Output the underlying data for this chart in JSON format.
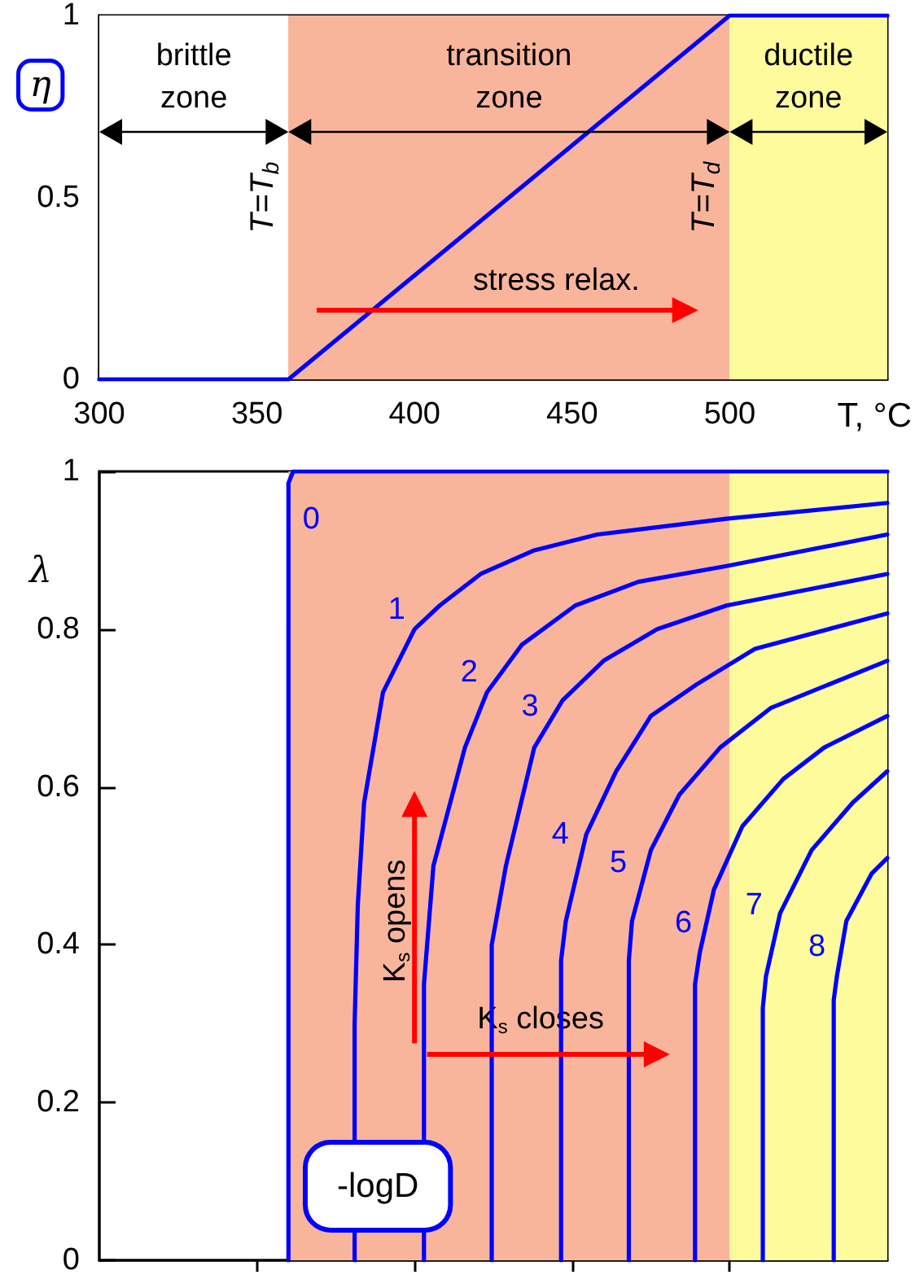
{
  "chart_data": [
    {
      "type": "line",
      "xlabel": "T, °C",
      "ylabel": "η",
      "xlim": [
        300,
        550
      ],
      "xticks": [
        300,
        350,
        400,
        450,
        500
      ],
      "ylim": [
        0,
        1
      ],
      "yticks": [
        0,
        0.5,
        1
      ],
      "grid": false,
      "legend": false,
      "marker": "none",
      "line_style": "solid",
      "series": [
        {
          "color": "#0000ff",
          "x": [
            300,
            360,
            500,
            550
          ],
          "values": [
            0,
            0,
            1,
            1
          ]
        }
      ],
      "bands": [
        {
          "axis": "x",
          "from": 300,
          "to": 360,
          "label": "brittle zone",
          "color": "#ffffff"
        },
        {
          "axis": "x",
          "from": 360,
          "to": 500,
          "label": "transition zone",
          "color": "#f9b59c"
        },
        {
          "axis": "x",
          "from": 500,
          "to": 550,
          "label": "ductile zone",
          "color": "#fdfb9c"
        }
      ],
      "ref_lines": [
        {
          "axis": "x",
          "value": 360,
          "label": "T=T$_{b}$",
          "color": "#f9b59c"
        },
        {
          "axis": "x",
          "value": 500,
          "label": "T=T$_{d}$",
          "color": "#fdfb9c"
        }
      ],
      "annotations": [
        "stress relax."
      ]
    },
    {
      "type": "line",
      "ylabel": "λ",
      "legend_title": "-logD",
      "xlim": [
        300,
        550
      ],
      "xticks": [
        {
          "value": 350,
          "label": null
        },
        {
          "value": 400,
          "label": null
        },
        {
          "value": 450,
          "label": null
        },
        {
          "value": 500,
          "label": null
        }
      ],
      "ylim": [
        0,
        1
      ],
      "yticks": [
        0,
        0.2,
        0.4,
        0.6,
        0.8,
        1
      ],
      "tick_labels": "y",
      "grid": false,
      "legend": false,
      "marker": "none",
      "line_style": "solid",
      "bands": [
        {
          "axis": "x",
          "from": 360,
          "to": 500,
          "color": "#f9b59c"
        },
        {
          "axis": "x",
          "from": 500,
          "to": 550,
          "color": "#fdfb9c"
        }
      ],
      "series": [
        {
          "name": "0",
          "color": "#0000ff",
          "x": [
            360,
            360,
            361.5,
            550
          ],
          "values": [
            0,
            0.985,
            1,
            1
          ]
        },
        {
          "name": "1",
          "color": "#0000ff",
          "x": [
            381,
            381,
            382,
            384,
            390,
            400,
            408,
            421,
            438,
            458,
            499,
            550
          ],
          "values": [
            0,
            0.3,
            0.45,
            0.58,
            0.72,
            0.8,
            0.83,
            0.87,
            0.9,
            0.92,
            0.94,
            0.96
          ]
        },
        {
          "name": "2",
          "color": "#0000ff",
          "x": [
            403,
            403,
            406,
            416,
            423,
            434,
            451,
            471,
            499,
            550
          ],
          "values": [
            0,
            0.35,
            0.5,
            0.65,
            0.72,
            0.78,
            0.83,
            0.86,
            0.88,
            0.92
          ]
        },
        {
          "name": "3",
          "color": "#0000ff",
          "x": [
            424.5,
            424.5,
            429,
            438,
            447,
            460,
            477,
            499,
            550
          ],
          "values": [
            0,
            0.4,
            0.5,
            0.65,
            0.71,
            0.76,
            0.8,
            0.83,
            0.87
          ]
        },
        {
          "name": "4",
          "color": "#0000ff",
          "x": [
            446.5,
            446.5,
            448,
            454.5,
            464,
            475,
            489.5,
            508,
            550
          ],
          "values": [
            0,
            0.38,
            0.43,
            0.54,
            0.62,
            0.69,
            0.73,
            0.775,
            0.82
          ]
        },
        {
          "name": "5",
          "color": "#0000ff",
          "x": [
            468,
            468,
            469,
            475,
            484,
            497,
            513,
            550
          ],
          "values": [
            0,
            0.38,
            0.43,
            0.52,
            0.59,
            0.65,
            0.7,
            0.76
          ]
        },
        {
          "name": "6",
          "color": "#0000ff",
          "x": [
            489,
            489,
            490.5,
            495,
            504,
            517,
            530,
            550
          ],
          "values": [
            0,
            0.35,
            0.39,
            0.47,
            0.55,
            0.61,
            0.65,
            0.69
          ]
        },
        {
          "name": "7",
          "color": "#0000ff",
          "x": [
            510.5,
            510.5,
            511.5,
            516,
            526,
            539,
            550
          ],
          "values": [
            0,
            0.32,
            0.36,
            0.44,
            0.52,
            0.58,
            0.62
          ]
        },
        {
          "name": "8",
          "color": "#0000ff",
          "x": [
            533,
            533,
            534,
            537,
            545,
            550
          ],
          "values": [
            0,
            0.33,
            0.36,
            0.43,
            0.49,
            0.51
          ]
        }
      ],
      "annotations": [
        "K$_{s}$ opens",
        "K$_{s}$ closes"
      ]
    }
  ]
}
